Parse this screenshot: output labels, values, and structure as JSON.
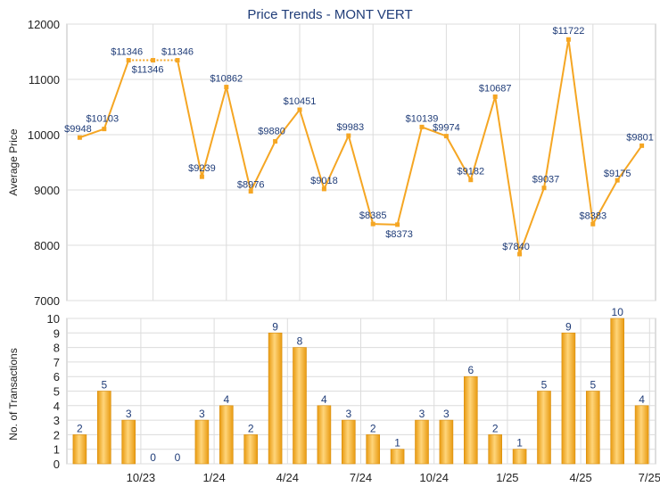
{
  "chart_data": [
    {
      "type": "line",
      "title": "Price Trends - MONT VERT",
      "ylabel": "Average Price",
      "ylim": [
        7000,
        12000
      ],
      "yticks": [
        7000,
        8000,
        9000,
        10000,
        11000,
        12000
      ],
      "color": "#f5a623",
      "grid": true,
      "values": [
        9948,
        10103,
        11346,
        11346,
        11346,
        9239,
        10862,
        8976,
        9880,
        10451,
        9018,
        9983,
        8385,
        8373,
        10139,
        9974,
        9182,
        10687,
        7840,
        9037,
        11722,
        8383,
        9175,
        9801
      ],
      "labels": [
        "$9948",
        "$10103",
        "$11346",
        "$11346",
        "$11346",
        "$9239",
        "$10862",
        "$8976",
        "$9880",
        "$10451",
        "$9018",
        "$9983",
        "$8385",
        "$8373",
        "$10139",
        "$9974",
        "$9182",
        "$10687",
        "$7840",
        "$9037",
        "$11722",
        "$8383",
        "$9175",
        "$9801"
      ],
      "dotted_segment": [
        2,
        4
      ]
    },
    {
      "type": "bar",
      "ylabel": "No. of Transactions",
      "ylim": [
        0,
        10
      ],
      "yticks": [
        0,
        1,
        2,
        3,
        4,
        5,
        6,
        7,
        8,
        9,
        10
      ],
      "color": "#f5a623",
      "grid": true,
      "values": [
        2,
        5,
        3,
        0,
        0,
        3,
        4,
        2,
        9,
        8,
        4,
        3,
        2,
        1,
        3,
        3,
        6,
        2,
        1,
        5,
        9,
        5,
        10,
        4
      ],
      "x_tick_labels": [
        {
          "index": 2,
          "label": "10/23"
        },
        {
          "index": 5,
          "label": "1/24"
        },
        {
          "index": 8,
          "label": "4/24"
        },
        {
          "index": 11,
          "label": "7/24"
        },
        {
          "index": 14,
          "label": "10/24"
        },
        {
          "index": 17,
          "label": "1/25"
        },
        {
          "index": 20,
          "label": "4/25"
        },
        {
          "index": 23,
          "label": "7/25"
        }
      ]
    }
  ]
}
